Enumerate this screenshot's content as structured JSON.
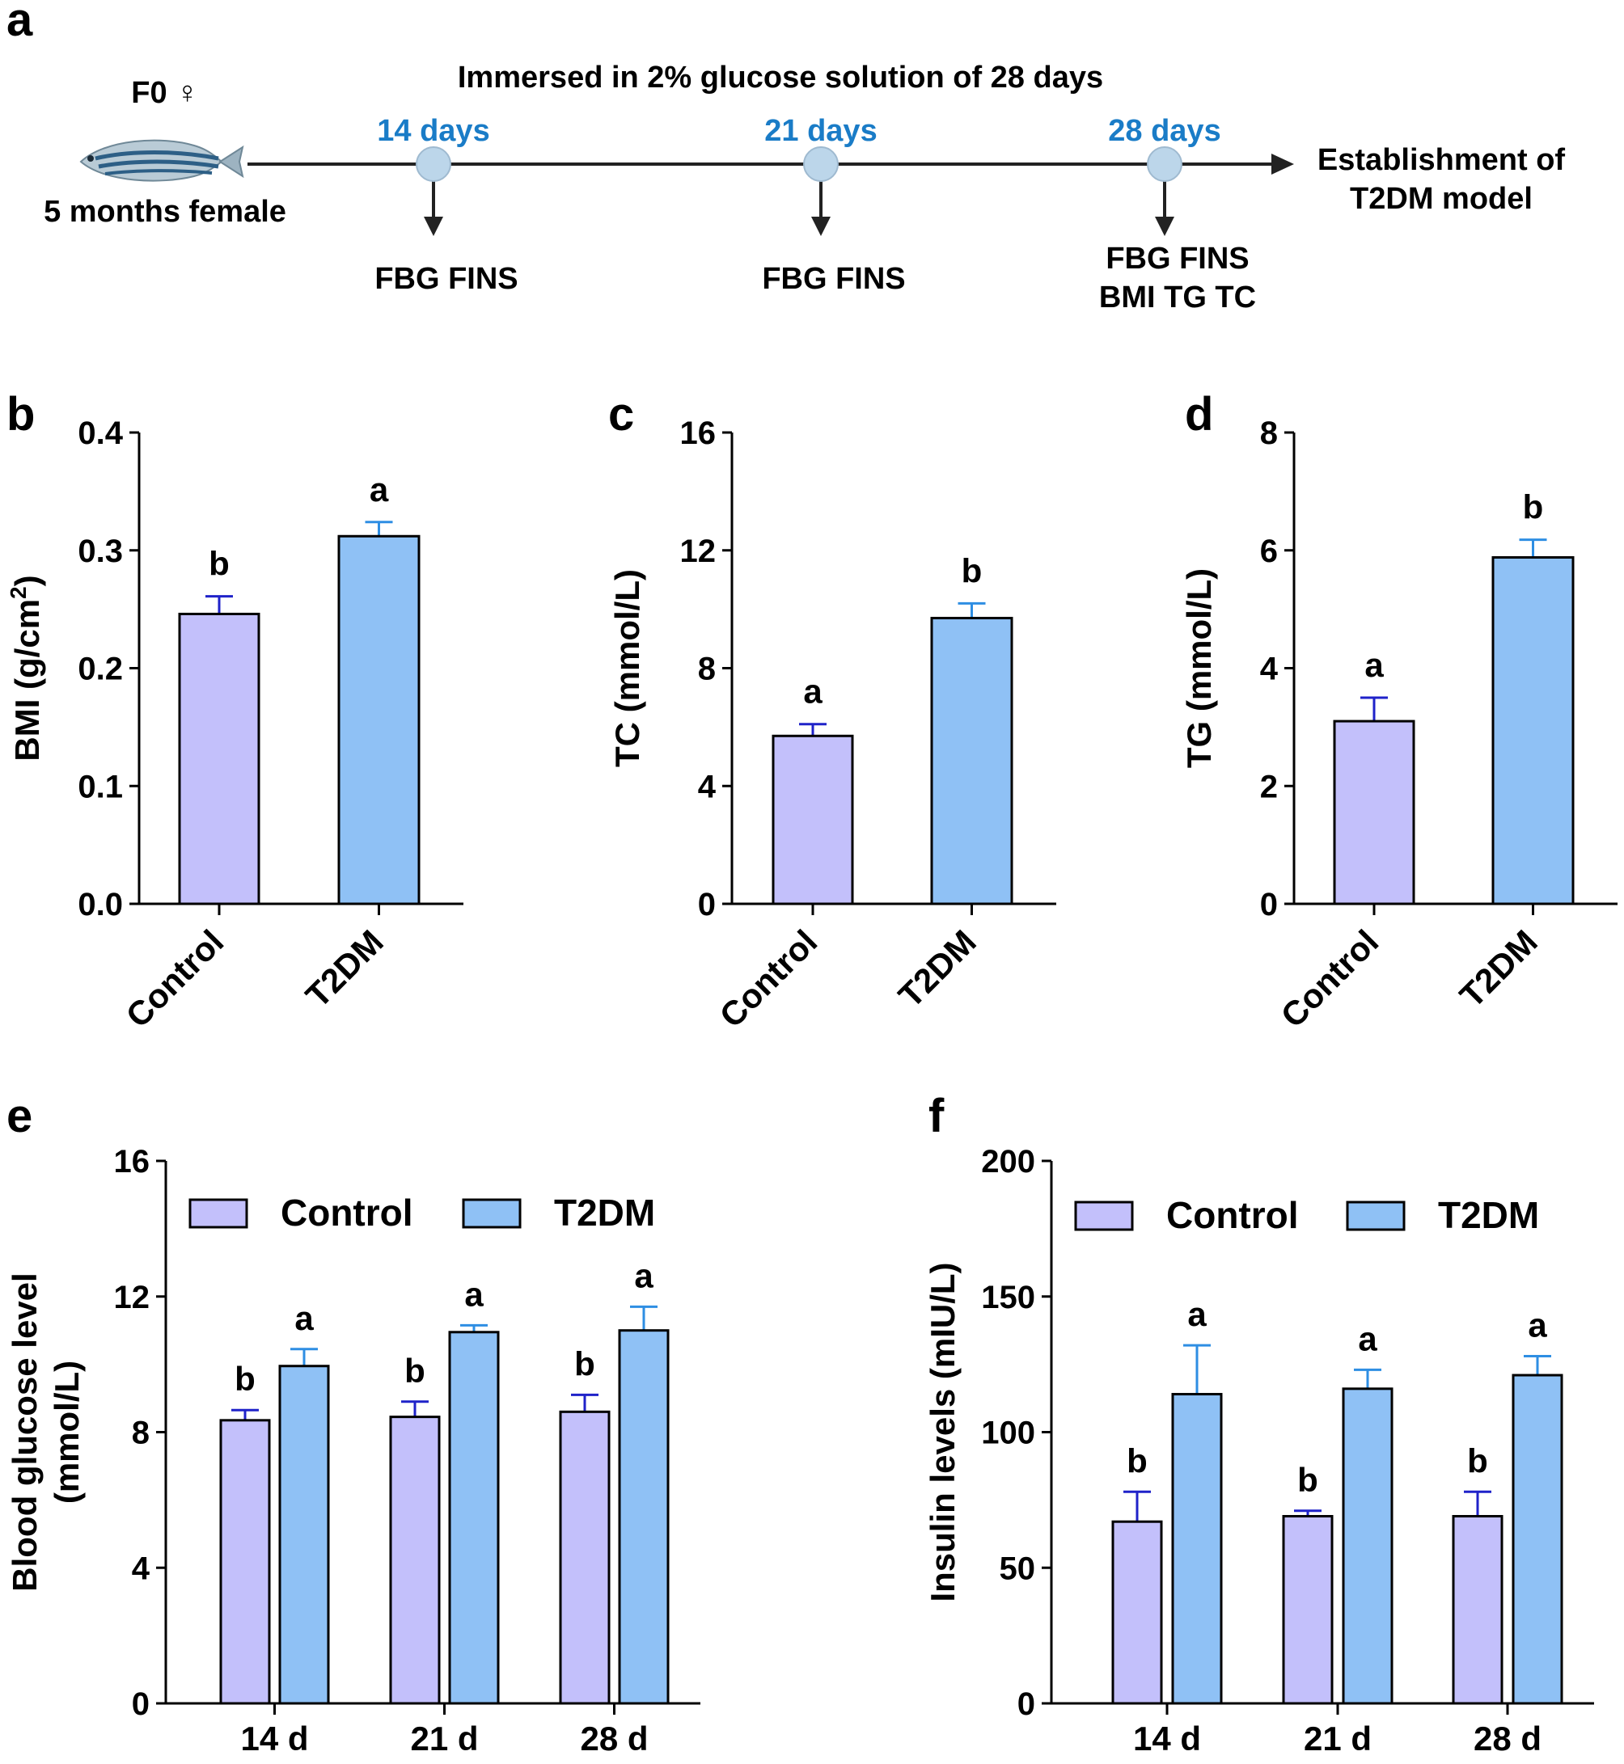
{
  "timeline": {
    "label": "a",
    "title": "Immersed in 2% glucose solution of 28 days",
    "subject_label": "F0 ♀",
    "subject_desc": "5 months female",
    "timepoints": [
      {
        "day": "14 days",
        "measures": [
          "FBG FINS"
        ]
      },
      {
        "day": "21 days",
        "measures": [
          "FBG FINS"
        ]
      },
      {
        "day": "28 days",
        "measures": [
          "FBG FINS",
          "BMI TG TC"
        ]
      }
    ],
    "outcome": [
      "Establishment of",
      "T2DM model"
    ]
  },
  "colors": {
    "control_fill": "#c3c0fb",
    "control_err": "#1f22c9",
    "t2dm_fill": "#8fc1f5",
    "t2dm_err": "#2e8ee3",
    "timeline_day": "#1a7cc7",
    "node_fill": "#bcd6ea"
  },
  "chart_data": [
    {
      "panel": "b",
      "type": "bar",
      "categories": [
        "Control",
        "T2DM"
      ],
      "values": [
        0.246,
        0.312
      ],
      "errors": [
        0.015,
        0.012
      ],
      "sig": [
        "b",
        "a"
      ],
      "ylabel": "BMI (g/cm",
      "ylabel_sup": "2",
      "ylabel_end": ")",
      "ylim": [
        0,
        0.4
      ],
      "yticks": [
        "0.0",
        "0.1",
        "0.2",
        "0.3",
        "0.4"
      ]
    },
    {
      "panel": "c",
      "type": "bar",
      "categories": [
        "Control",
        "T2DM"
      ],
      "values": [
        5.7,
        9.7
      ],
      "errors": [
        0.4,
        0.5
      ],
      "sig": [
        "a",
        "b"
      ],
      "ylabel": "TC (mmol/L)",
      "ylim": [
        0,
        16
      ],
      "yticks": [
        "0",
        "4",
        "8",
        "12",
        "16"
      ]
    },
    {
      "panel": "d",
      "type": "bar",
      "categories": [
        "Control",
        "T2DM"
      ],
      "values": [
        3.1,
        5.88
      ],
      "errors": [
        0.4,
        0.3
      ],
      "sig": [
        "a",
        "b"
      ],
      "ylabel": "TG (mmol/L)",
      "ylim": [
        0,
        8
      ],
      "yticks": [
        "0",
        "2",
        "4",
        "6",
        "8"
      ]
    },
    {
      "panel": "e",
      "type": "bar",
      "categories": [
        "14 d",
        "21 d",
        "28 d"
      ],
      "series": [
        {
          "name": "Control",
          "values": [
            8.35,
            8.45,
            8.6
          ],
          "errors": [
            0.3,
            0.45,
            0.5
          ],
          "sig": [
            "b",
            "b",
            "b"
          ]
        },
        {
          "name": "T2DM",
          "values": [
            9.95,
            10.95,
            11.0
          ],
          "errors": [
            0.5,
            0.2,
            0.7
          ],
          "sig": [
            "a",
            "a",
            "a"
          ]
        }
      ],
      "ylabel_lines": [
        "Blood glucose level",
        "(mmol/L)"
      ],
      "ylim": [
        0,
        16
      ],
      "yticks": [
        "0",
        "4",
        "8",
        "12",
        "16"
      ],
      "legend": "top"
    },
    {
      "panel": "f",
      "type": "bar",
      "categories": [
        "14 d",
        "21 d",
        "28 d"
      ],
      "series": [
        {
          "name": "Control",
          "values": [
            67,
            69,
            69
          ],
          "errors": [
            11,
            2,
            9
          ],
          "sig": [
            "b",
            "b",
            "b"
          ]
        },
        {
          "name": "T2DM",
          "values": [
            114,
            116,
            121
          ],
          "errors": [
            18,
            7,
            7
          ],
          "sig": [
            "a",
            "a",
            "a"
          ]
        }
      ],
      "ylabel_lines": [
        "Insulin levels (mIU/L)"
      ],
      "ylim": [
        0,
        200
      ],
      "yticks": [
        "0",
        "50",
        "100",
        "150",
        "200"
      ],
      "legend": "top"
    }
  ]
}
